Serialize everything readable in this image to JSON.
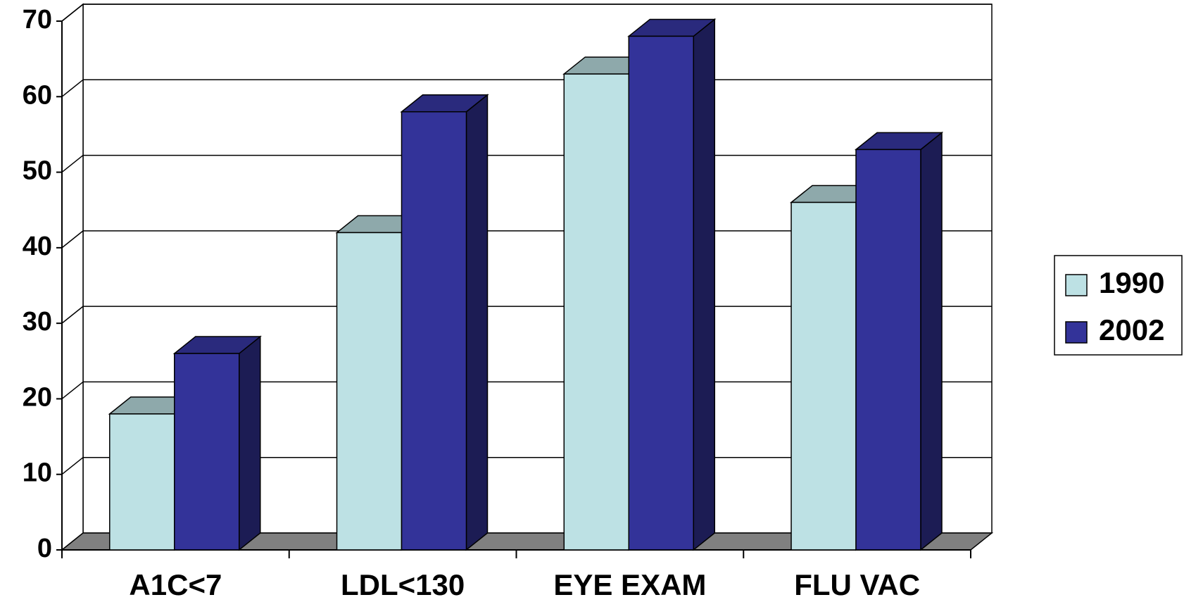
{
  "chart_data": {
    "type": "bar3d",
    "categories": [
      "A1C<7",
      "LDL<130",
      "EYE EXAM",
      "FLU VAC"
    ],
    "series": [
      {
        "name": "1990",
        "color": "#bde1e4",
        "values": [
          18,
          42,
          63,
          46
        ]
      },
      {
        "name": "2002",
        "color": "#333399",
        "values": [
          26,
          58,
          68,
          53
        ]
      }
    ],
    "ylim": [
      0,
      70
    ],
    "yticks": [
      0,
      10,
      20,
      30,
      40,
      50,
      60,
      70
    ],
    "grid": true,
    "legend": "right"
  }
}
